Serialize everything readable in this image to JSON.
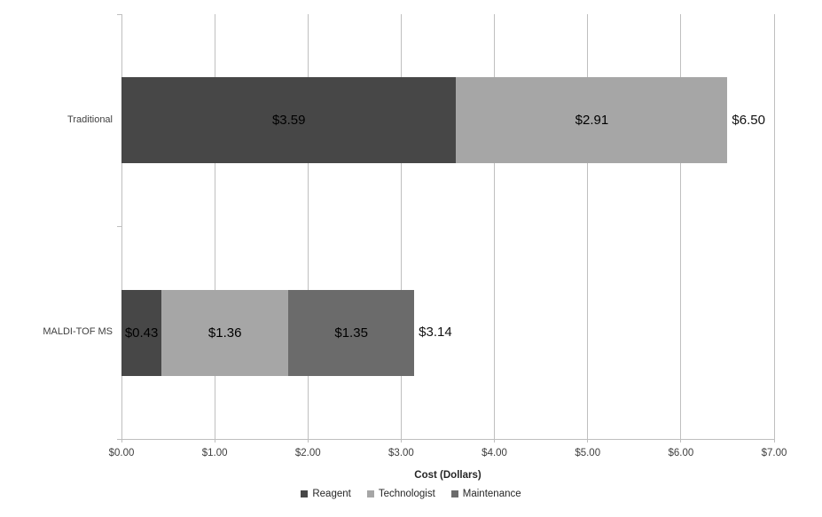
{
  "chart_data": {
    "type": "bar",
    "orientation": "horizontal",
    "stacked": true,
    "title": "",
    "xlabel": "Cost (Dollars)",
    "ylabel": "",
    "xlim": [
      0,
      7
    ],
    "x_tick_labels": [
      "$0.00",
      "$1.00",
      "$2.00",
      "$3.00",
      "$4.00",
      "$5.00",
      "$6.00",
      "$7.00"
    ],
    "gridlines": "vertical",
    "legend_position": "bottom",
    "series": [
      {
        "name": "Reagent",
        "color": "#474747",
        "values": [
          3.59,
          0.43
        ]
      },
      {
        "name": "Technologist",
        "color": "#A6A6A6",
        "values": [
          2.91,
          1.36
        ]
      },
      {
        "name": "Maintenance",
        "color": "#6B6B6B",
        "values": [
          0,
          1.35
        ]
      }
    ],
    "categories": [
      {
        "label": "Traditional",
        "segments": [
          {
            "series": "Reagent",
            "value": 3.59,
            "label": "$3.59",
            "color": "#474747"
          },
          {
            "series": "Technologist",
            "value": 2.91,
            "label": "$2.91",
            "color": "#A6A6A6"
          }
        ],
        "total": 6.5,
        "total_label": "$6.50"
      },
      {
        "label": "MALDI-TOF MS",
        "segments": [
          {
            "series": "Reagent",
            "value": 0.43,
            "label": "$0.43",
            "color": "#474747"
          },
          {
            "series": "Technologist",
            "value": 1.36,
            "label": "$1.36",
            "color": "#A6A6A6"
          },
          {
            "series": "Maintenance",
            "value": 1.35,
            "label": "$1.35",
            "color": "#6B6B6B"
          }
        ],
        "total": 3.14,
        "total_label": "$3.14"
      }
    ],
    "legend": [
      {
        "label": "Reagent",
        "color": "#474747"
      },
      {
        "label": "Technologist",
        "color": "#A6A6A6"
      },
      {
        "label": "Maintenance",
        "color": "#6B6B6B"
      }
    ],
    "colors": {
      "gridline": "#BFBFBF",
      "axis_line": "#BFBFBF",
      "background": "#FFFFFF",
      "data_label": "#000000",
      "tick_label": "#404040"
    }
  }
}
